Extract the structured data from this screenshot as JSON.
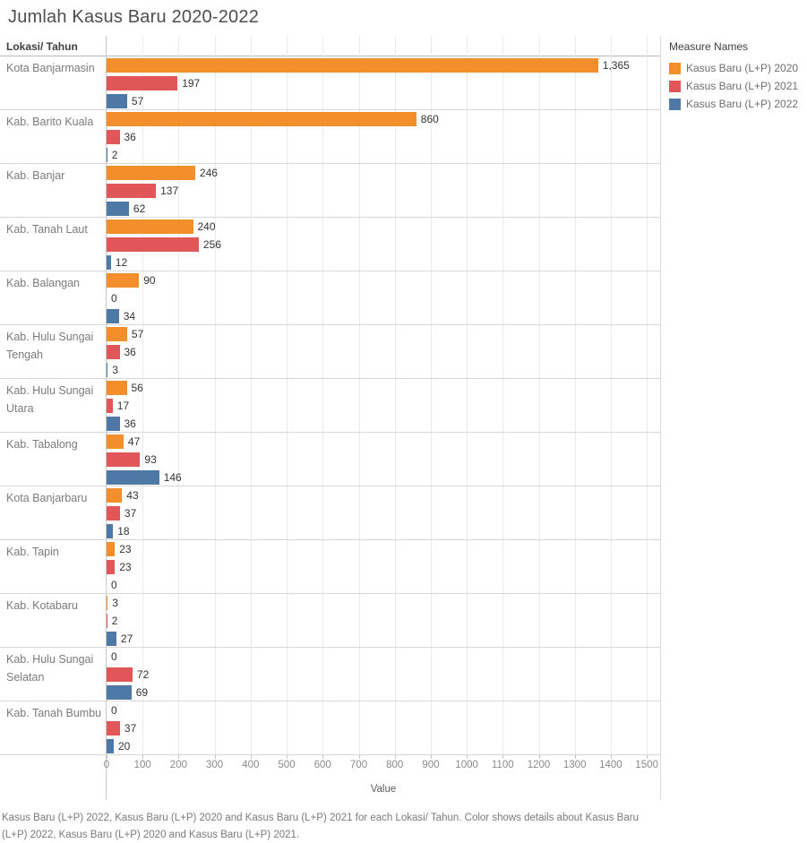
{
  "footer": {
    "caption": "Kasus Baru (L+P) 2022, Kasus Baru (L+P) 2020 and Kasus Baru (L+P) 2021 for each Lokasi/ Tahun.  Color shows details about Kasus Baru (L+P) 2022, Kasus Baru (L+P) 2020 and Kasus Baru (L+P) 2021."
  },
  "chart_data": {
    "type": "bar",
    "orientation": "horizontal",
    "title": "Jumlah Kasus Baru 2020-2022",
    "row_header": "Lokasi/ Tahun",
    "xlabel": "Value",
    "xlim": [
      0,
      1537
    ],
    "x_ticks": [
      0,
      100,
      200,
      300,
      400,
      500,
      600,
      700,
      800,
      900,
      1000,
      1100,
      1200,
      1300,
      1400,
      1500
    ],
    "grid": "vertical",
    "legend": {
      "title": "Measure Names",
      "position": "right"
    },
    "series": [
      {
        "name": "Kasus Baru (L+P) 2020",
        "color": "#f28e2b"
      },
      {
        "name": "Kasus Baru (L+P) 2021",
        "color": "#e15759"
      },
      {
        "name": "Kasus Baru (L+P) 2022",
        "color": "#4e79a7"
      }
    ],
    "categories": [
      "Kota Banjarmasin",
      "Kab. Barito Kuala",
      "Kab. Banjar",
      "Kab. Tanah Laut",
      "Kab. Balangan",
      "Kab. Hulu Sungai Tengah",
      "Kab. Hulu Sungai Utara",
      "Kab. Tabalong",
      "Kota Banjarbaru",
      "Kab. Tapin",
      "Kab. Kotabaru",
      "Kab. Hulu Sungai Selatan",
      "Kab. Tanah Bumbu"
    ],
    "values": [
      [
        1365,
        197,
        57
      ],
      [
        860,
        36,
        2
      ],
      [
        246,
        137,
        62
      ],
      [
        240,
        256,
        12
      ],
      [
        90,
        0,
        34
      ],
      [
        57,
        36,
        3
      ],
      [
        56,
        17,
        36
      ],
      [
        47,
        93,
        146
      ],
      [
        43,
        37,
        18
      ],
      [
        23,
        23,
        0
      ],
      [
        3,
        2,
        27
      ],
      [
        0,
        72,
        69
      ],
      [
        0,
        37,
        20
      ]
    ]
  }
}
